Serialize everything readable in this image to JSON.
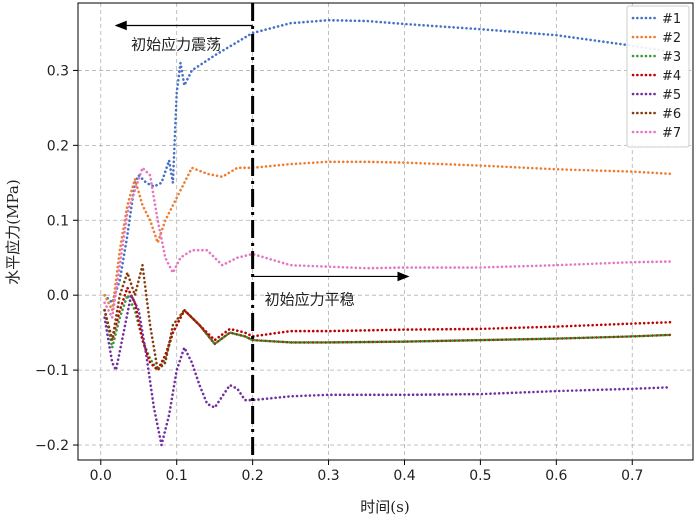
{
  "chart_data": {
    "type": "line",
    "xlabel": "时间(s)",
    "ylabel": "水平应力(MPa)",
    "xlim": [
      -0.03,
      0.78
    ],
    "ylim": [
      -0.22,
      0.39
    ],
    "xticks": [
      0.0,
      0.1,
      0.2,
      0.3,
      0.4,
      0.5,
      0.6,
      0.7
    ],
    "xtick_labels": [
      "0.0",
      "0.1",
      "0.2",
      "0.3",
      "0.4",
      "0.5",
      "0.6",
      "0.7"
    ],
    "yticks": [
      -0.2,
      -0.1,
      0.0,
      0.1,
      0.2,
      0.3
    ],
    "ytick_labels": [
      "−0.2",
      "−0.1",
      "0.0",
      "0.1",
      "0.2",
      "0.3"
    ],
    "grid": true,
    "legend_position": "top-right",
    "vline_x": 0.2,
    "annotations": [
      {
        "text": "初始应力震荡",
        "direction": "left",
        "y": 0.36
      },
      {
        "text": "初始应力平稳",
        "direction": "right",
        "y": 0.025
      }
    ],
    "series": [
      {
        "name": "#1",
        "color": "#4472c4",
        "x": [
          0.005,
          0.015,
          0.025,
          0.035,
          0.045,
          0.05,
          0.06,
          0.07,
          0.08,
          0.09,
          0.095,
          0.1,
          0.105,
          0.11,
          0.12,
          0.15,
          0.2,
          0.25,
          0.3,
          0.35,
          0.4,
          0.5,
          0.6,
          0.7,
          0.75
        ],
        "y": [
          0.0,
          -0.01,
          0.02,
          0.08,
          0.15,
          0.16,
          0.15,
          0.145,
          0.15,
          0.18,
          0.15,
          0.27,
          0.31,
          0.28,
          0.3,
          0.32,
          0.35,
          0.363,
          0.367,
          0.366,
          0.362,
          0.355,
          0.347,
          0.333,
          0.325
        ]
      },
      {
        "name": "#2",
        "color": "#ed7d31",
        "x": [
          0.005,
          0.015,
          0.025,
          0.035,
          0.045,
          0.055,
          0.065,
          0.075,
          0.085,
          0.095,
          0.105,
          0.12,
          0.14,
          0.16,
          0.18,
          0.2,
          0.25,
          0.3,
          0.35,
          0.4,
          0.5,
          0.6,
          0.7,
          0.75
        ],
        "y": [
          0.0,
          -0.02,
          0.06,
          0.12,
          0.155,
          0.12,
          0.1,
          0.07,
          0.1,
          0.12,
          0.14,
          0.17,
          0.162,
          0.158,
          0.17,
          0.17,
          0.175,
          0.178,
          0.178,
          0.177,
          0.173,
          0.168,
          0.165,
          0.162
        ]
      },
      {
        "name": "#3",
        "color": "#3a9a3a",
        "x": [
          0.005,
          0.015,
          0.025,
          0.035,
          0.045,
          0.055,
          0.065,
          0.075,
          0.085,
          0.095,
          0.11,
          0.13,
          0.15,
          0.17,
          0.19,
          0.2,
          0.25,
          0.3,
          0.4,
          0.5,
          0.6,
          0.7,
          0.75
        ],
        "y": [
          -0.02,
          -0.07,
          -0.03,
          0.0,
          -0.02,
          -0.06,
          -0.085,
          -0.1,
          -0.085,
          -0.05,
          -0.02,
          -0.04,
          -0.065,
          -0.05,
          -0.055,
          -0.06,
          -0.063,
          -0.063,
          -0.062,
          -0.06,
          -0.058,
          -0.055,
          -0.053
        ]
      },
      {
        "name": "#4",
        "color": "#c00000",
        "x": [
          0.005,
          0.015,
          0.025,
          0.035,
          0.045,
          0.055,
          0.065,
          0.075,
          0.085,
          0.095,
          0.11,
          0.13,
          0.15,
          0.17,
          0.19,
          0.2,
          0.25,
          0.3,
          0.4,
          0.5,
          0.6,
          0.7,
          0.75
        ],
        "y": [
          -0.02,
          -0.06,
          -0.02,
          0.01,
          -0.01,
          -0.06,
          -0.09,
          -0.1,
          -0.08,
          -0.05,
          -0.02,
          -0.04,
          -0.06,
          -0.045,
          -0.05,
          -0.055,
          -0.048,
          -0.048,
          -0.046,
          -0.045,
          -0.042,
          -0.038,
          -0.036
        ]
      },
      {
        "name": "#5",
        "color": "#7030a0",
        "x": [
          0.005,
          0.015,
          0.02,
          0.03,
          0.04,
          0.05,
          0.06,
          0.07,
          0.08,
          0.09,
          0.1,
          0.11,
          0.12,
          0.13,
          0.14,
          0.15,
          0.16,
          0.17,
          0.18,
          0.19,
          0.2,
          0.25,
          0.3,
          0.4,
          0.5,
          0.6,
          0.7,
          0.75
        ],
        "y": [
          -0.03,
          -0.09,
          -0.1,
          -0.05,
          0.0,
          -0.02,
          -0.08,
          -0.15,
          -0.2,
          -0.16,
          -0.1,
          -0.07,
          -0.09,
          -0.12,
          -0.145,
          -0.15,
          -0.135,
          -0.12,
          -0.125,
          -0.14,
          -0.14,
          -0.135,
          -0.133,
          -0.133,
          -0.132,
          -0.128,
          -0.125,
          -0.123
        ]
      },
      {
        "name": "#6",
        "color": "#843c0c",
        "x": [
          0.005,
          0.015,
          0.025,
          0.035,
          0.045,
          0.055,
          0.065,
          0.075,
          0.085,
          0.095,
          0.11,
          0.13,
          0.15,
          0.17,
          0.19,
          0.2,
          0.25,
          0.3,
          0.4,
          0.5,
          0.6,
          0.7,
          0.75
        ],
        "y": [
          -0.02,
          -0.06,
          0.0,
          0.03,
          0.0,
          0.04,
          -0.04,
          -0.1,
          -0.09,
          -0.04,
          -0.02,
          -0.04,
          -0.065,
          -0.05,
          -0.055,
          -0.06,
          -0.063,
          -0.063,
          -0.062,
          -0.06,
          -0.058,
          -0.055,
          -0.053
        ]
      },
      {
        "name": "#7",
        "color": "#e377c2",
        "x": [
          0.005,
          0.015,
          0.025,
          0.035,
          0.045,
          0.055,
          0.065,
          0.075,
          0.085,
          0.095,
          0.105,
          0.12,
          0.14,
          0.16,
          0.18,
          0.2,
          0.25,
          0.3,
          0.35,
          0.4,
          0.5,
          0.6,
          0.7,
          0.75
        ],
        "y": [
          -0.01,
          -0.03,
          0.04,
          0.11,
          0.14,
          0.17,
          0.16,
          0.1,
          0.05,
          0.03,
          0.05,
          0.06,
          0.06,
          0.04,
          0.05,
          0.055,
          0.04,
          0.038,
          0.036,
          0.037,
          0.037,
          0.04,
          0.044,
          0.045
        ]
      }
    ]
  }
}
